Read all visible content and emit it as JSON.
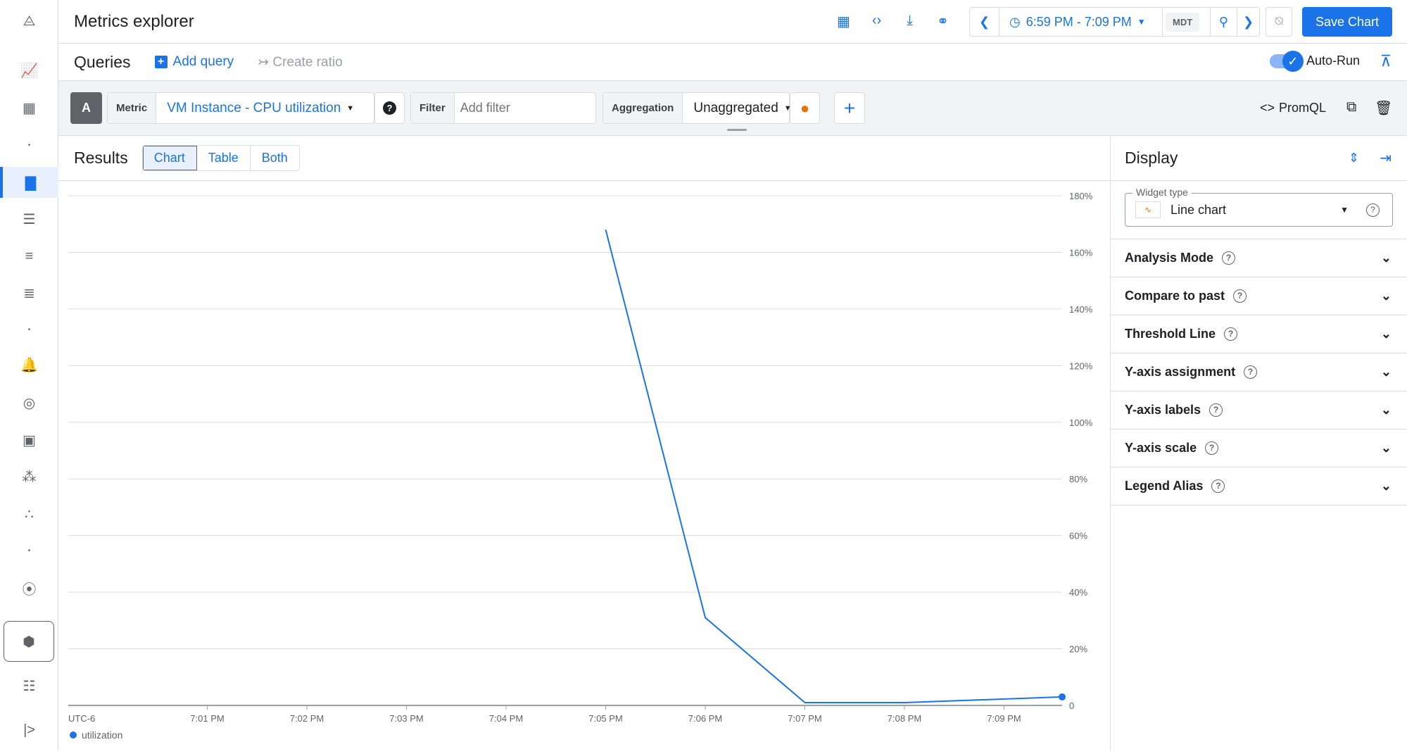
{
  "header": {
    "title": "Metrics explorer",
    "time_range": "6:59 PM - 7:09 PM",
    "timezone": "MDT",
    "save_label": "Save Chart"
  },
  "queries": {
    "title": "Queries",
    "add_query": "Add query",
    "create_ratio": "Create ratio",
    "auto_run": "Auto-Run",
    "auto_run_on": true
  },
  "editor": {
    "query_letter": "A",
    "metric_label": "Metric",
    "metric_value": "VM Instance - CPU utilization",
    "filter_label": "Filter",
    "filter_placeholder": "Add filter",
    "aggregation_label": "Aggregation",
    "aggregation_value": "Unaggregated",
    "promql": "PromQL"
  },
  "results": {
    "title": "Results",
    "tabs": [
      "Chart",
      "Table",
      "Both"
    ],
    "active_tab": "Chart"
  },
  "display": {
    "title": "Display",
    "widget_type_label": "Widget type",
    "widget_type": "Line chart",
    "sections": [
      "Analysis Mode",
      "Compare to past",
      "Threshold Line",
      "Y-axis assignment",
      "Y-axis labels",
      "Y-axis scale",
      "Legend Alias"
    ]
  },
  "sidebar": {
    "icons": [
      "monitoring-logo-icon",
      "overview-icon",
      "dashboards-icon",
      "dot-icon",
      "metrics-explorer-icon",
      "logs-icon",
      "log-analytics-icon",
      "trace-icon",
      "dot-icon",
      "alerting-icon",
      "uptime-icon",
      "synthetic-monitoring-icon",
      "service-monitoring-icon",
      "groups-icon",
      "dot-icon",
      "integrations-icon",
      "gke-icon",
      "release-notes-icon",
      "expand-icon"
    ]
  },
  "chart_data": {
    "type": "line",
    "timezone_label": "UTC-6",
    "x_ticks": [
      "7:01 PM",
      "7:02 PM",
      "7:03 PM",
      "7:04 PM",
      "7:05 PM",
      "7:06 PM",
      "7:07 PM",
      "7:08 PM",
      "7:09 PM"
    ],
    "y_ticks": [
      "0",
      "20%",
      "40%",
      "60%",
      "80%",
      "100%",
      "120%",
      "140%",
      "160%",
      "180%"
    ],
    "ylim": [
      0,
      180
    ],
    "series": [
      {
        "name": "utilization",
        "color": "#1a73e8",
        "x": [
          "7:05 PM",
          "7:06 PM",
          "7:07 PM",
          "7:08 PM",
          "7:09:35 PM"
        ],
        "y": [
          168,
          31,
          1,
          1,
          3
        ]
      }
    ],
    "grid": true,
    "legend": "bottom-left"
  }
}
